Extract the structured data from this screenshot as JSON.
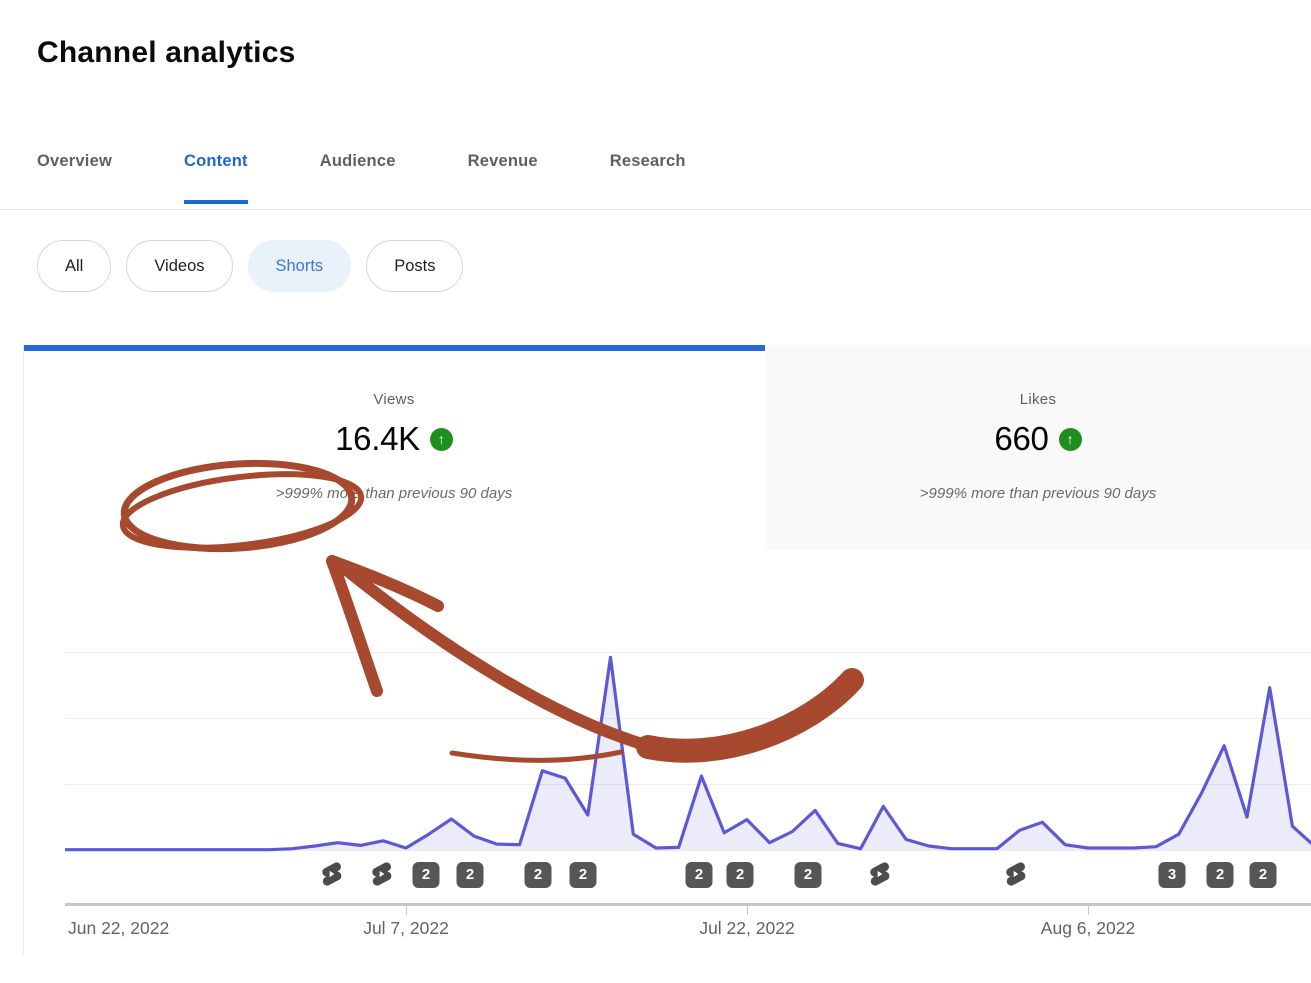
{
  "page": {
    "title": "Channel analytics"
  },
  "tabs": [
    {
      "label": "Overview",
      "active": false
    },
    {
      "label": "Content",
      "active": true
    },
    {
      "label": "Audience",
      "active": false
    },
    {
      "label": "Revenue",
      "active": false
    },
    {
      "label": "Research",
      "active": false
    }
  ],
  "filter_chips": [
    {
      "label": "All",
      "selected": false
    },
    {
      "label": "Videos",
      "selected": false
    },
    {
      "label": "Shorts",
      "selected": true
    },
    {
      "label": "Posts",
      "selected": false
    }
  ],
  "metric_cards": [
    {
      "label": "Views",
      "value": "16.4K",
      "trend": "up",
      "trend_icon": "green-circle-up-arrow",
      "comparison": ">999% more than previous 90 days",
      "selected": true
    },
    {
      "label": "Likes",
      "value": "660",
      "trend": "up",
      "trend_icon": "green-circle-up-arrow",
      "comparison": ">999% more than previous 90 days",
      "selected": false
    }
  ],
  "chart_data": {
    "type": "area",
    "x_unit": "day",
    "x_start_label": "Jun 22, 2022",
    "x_tick_labels": [
      {
        "label": "Jun 22, 2022",
        "day": 0
      },
      {
        "label": "Jul 7, 2022",
        "day": 15
      },
      {
        "label": "Jul 22, 2022",
        "day": 30
      },
      {
        "label": "Aug 6, 2022",
        "day": 45
      }
    ],
    "series": [
      {
        "name": "Views",
        "values": [
          2,
          2,
          2,
          2,
          2,
          2,
          2,
          2,
          2,
          2,
          10,
          30,
          55,
          35,
          70,
          15,
          120,
          235,
          105,
          45,
          40,
          600,
          545,
          265,
          1460,
          120,
          15,
          20,
          560,
          130,
          230,
          55,
          140,
          300,
          50,
          10,
          330,
          80,
          30,
          10,
          10,
          10,
          150,
          210,
          40,
          15,
          15,
          15,
          25,
          120,
          430,
          790,
          250,
          1230,
          180,
          25
        ]
      }
    ],
    "ylim": [
      0,
      1500
    ],
    "y_gridline_step": 500,
    "y_axis_labels_visible": false,
    "grid": true,
    "legend": false,
    "content_markers": [
      {
        "day": 11.8,
        "type": "shorts-icon"
      },
      {
        "day": 14.0,
        "type": "shorts-icon"
      },
      {
        "day": 15.9,
        "type": "count-badge",
        "count": "2"
      },
      {
        "day": 17.8,
        "type": "count-badge",
        "count": "2"
      },
      {
        "day": 20.8,
        "type": "count-badge",
        "count": "2"
      },
      {
        "day": 22.8,
        "type": "count-badge",
        "count": "2"
      },
      {
        "day": 27.9,
        "type": "count-badge",
        "count": "2"
      },
      {
        "day": 29.7,
        "type": "count-badge",
        "count": "2"
      },
      {
        "day": 32.7,
        "type": "count-badge",
        "count": "2"
      },
      {
        "day": 35.9,
        "type": "shorts-icon"
      },
      {
        "day": 41.9,
        "type": "shorts-icon"
      },
      {
        "day": 48.7,
        "type": "count-badge",
        "count": "3"
      },
      {
        "day": 50.8,
        "type": "count-badge",
        "count": "2"
      },
      {
        "day": 52.7,
        "type": "count-badge",
        "count": "2"
      }
    ]
  },
  "annotation": {
    "kind": "hand-drawn circle and curved arrow",
    "color": "#a7492f",
    "circled_text": ">999% mo"
  },
  "colors": {
    "accent_blue": "#1a67d2",
    "selected_card_bar": "#2769d8",
    "chip_selected_bg": "#e9f1fb",
    "chip_selected_text": "#3b77dd",
    "line": "#5d59d4",
    "line_fill": "rgba(93,89,212,0.12)",
    "positive_green": "#1e8e1e",
    "marker_gray": "#565656",
    "inactive_card_bg": "#f9f9f9"
  }
}
